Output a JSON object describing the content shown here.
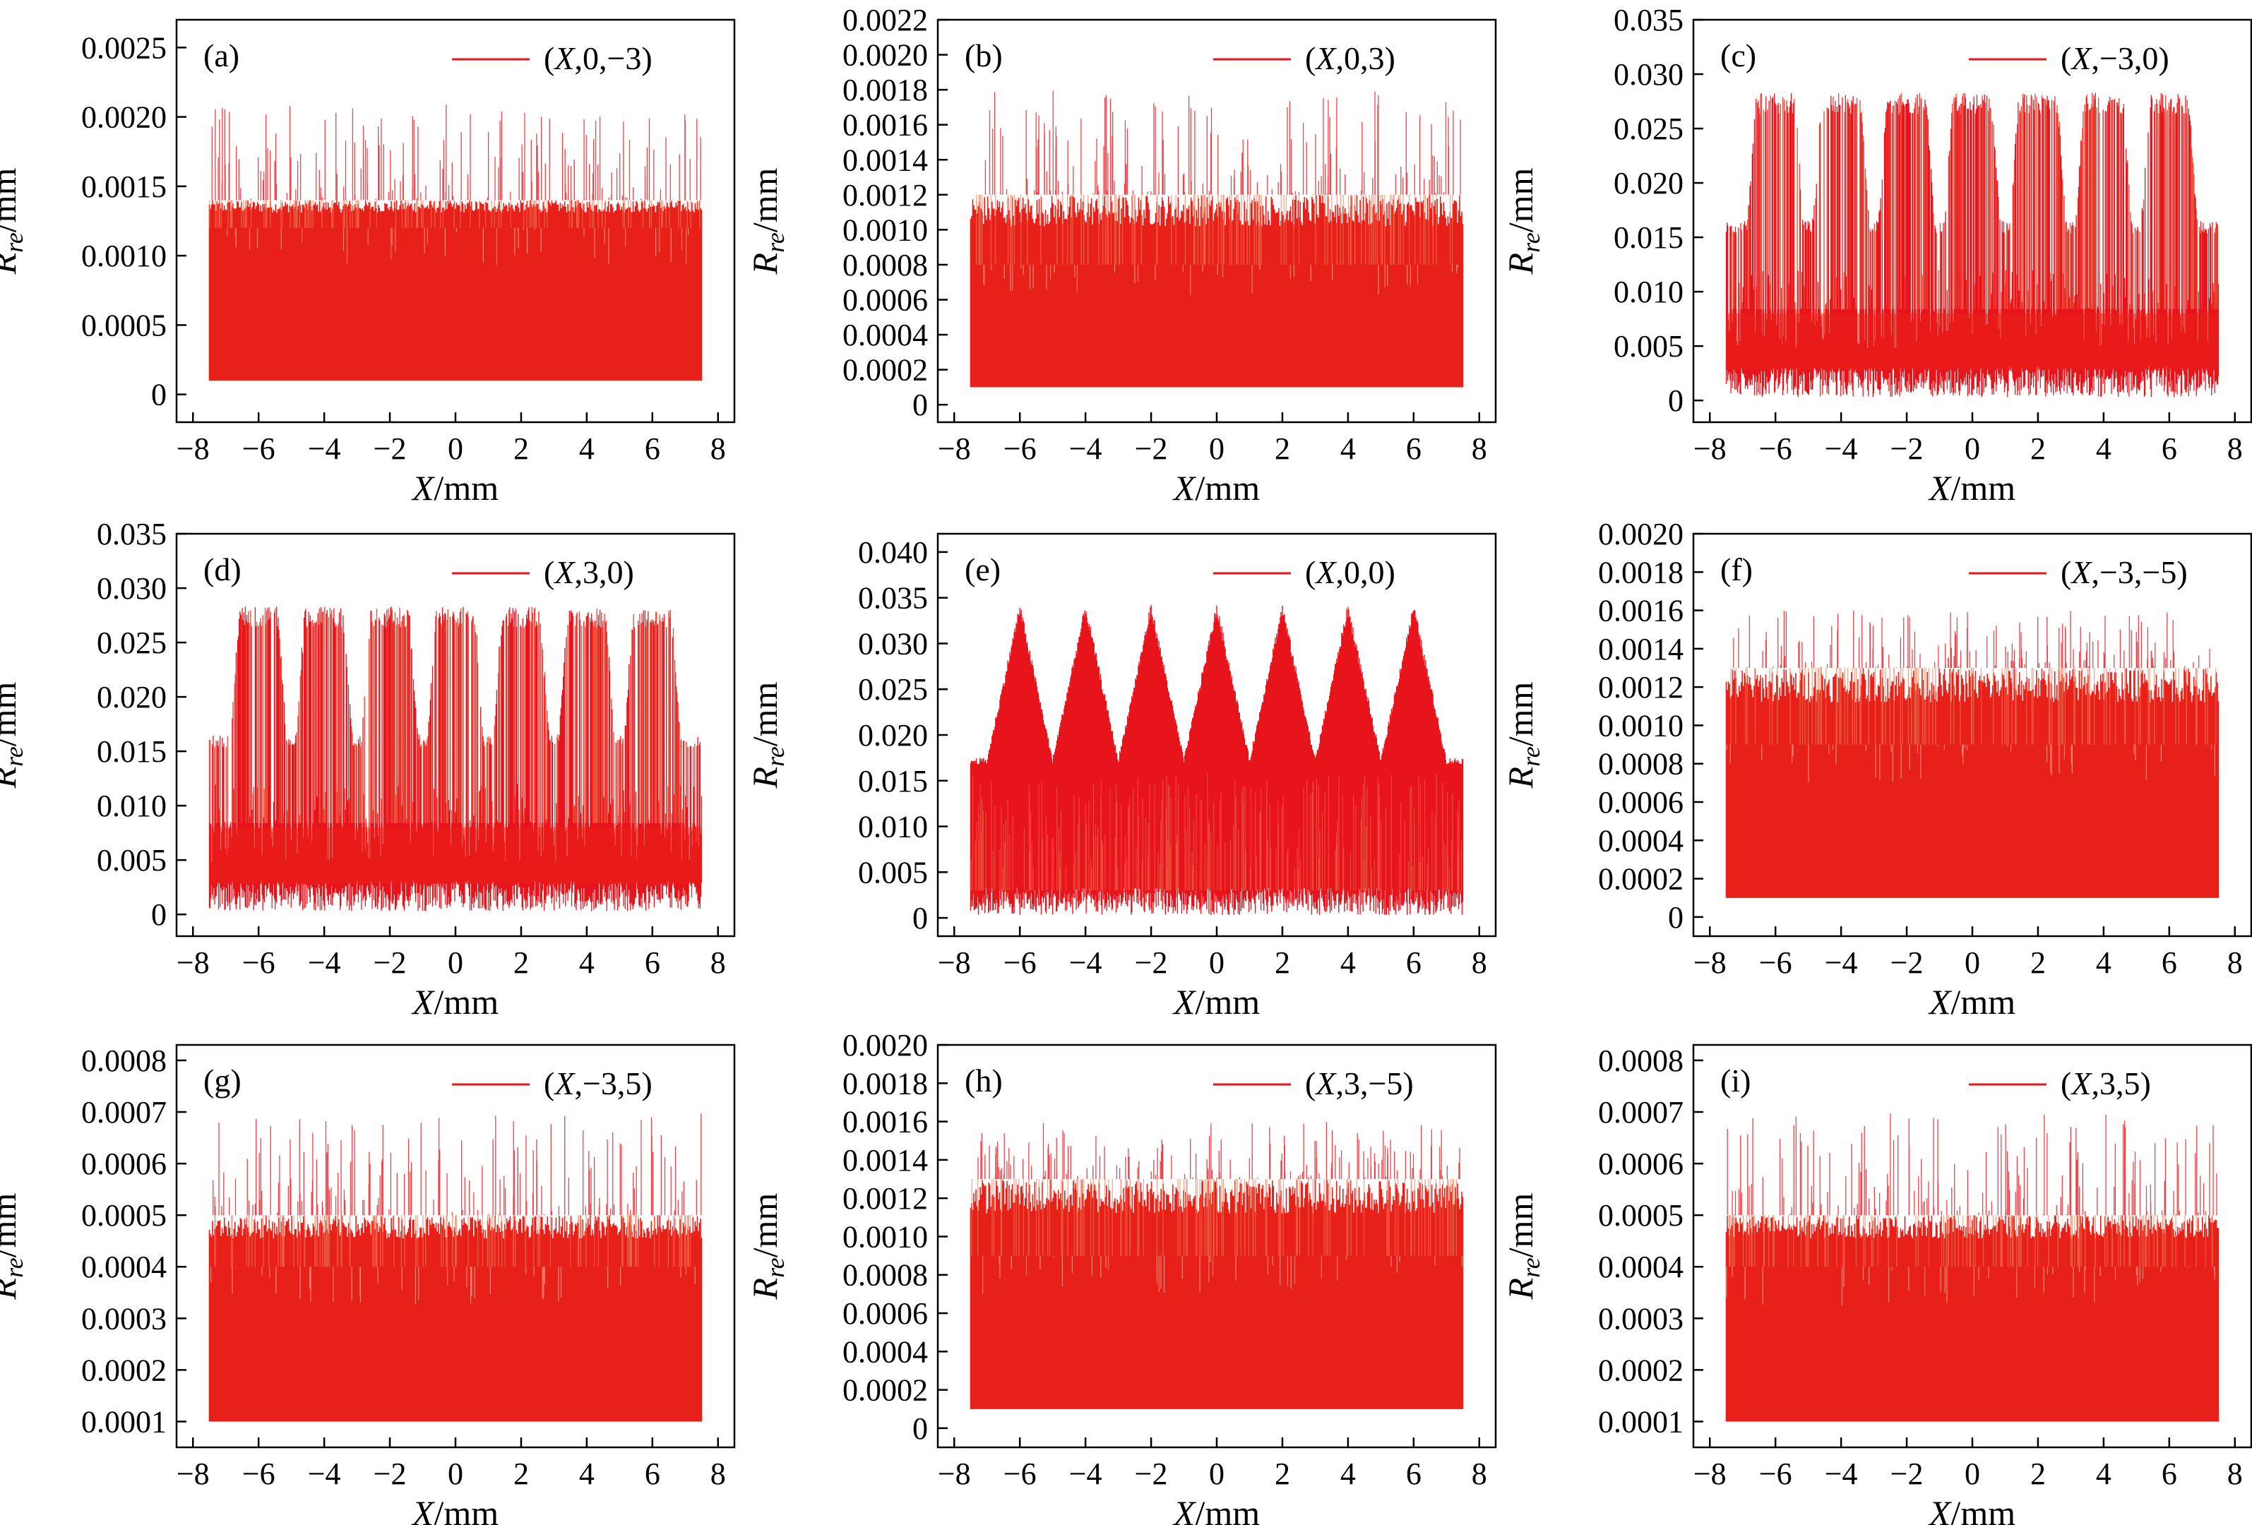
{
  "figure": {
    "ylabel_main": "R",
    "ylabel_sub": "re",
    "ylabel_unit": "/mm",
    "xlabel_main": "X",
    "xlabel_unit": "/mm",
    "line_color": "#e8141c",
    "fill_color": "#e8201a",
    "upper_color": "#f07a55"
  },
  "chart_data": [
    {
      "panel": "(a)",
      "type": "line",
      "legend": "(X,0,−3)",
      "legend_placement": "top-right",
      "xlim": [
        -8.5,
        8.5
      ],
      "xticks": [
        "−8",
        "−6",
        "−4",
        "−2",
        "0",
        "2",
        "4",
        "6",
        "8"
      ],
      "ylim": [
        -0.0002,
        0.0027
      ],
      "yticks": [
        {
          "v": 0,
          "t": "0"
        },
        {
          "v": 0.0005,
          "t": "0.0005"
        },
        {
          "v": 0.001,
          "t": "0.0010"
        },
        {
          "v": 0.0015,
          "t": "0.0015"
        },
        {
          "v": 0.002,
          "t": "0.0020"
        },
        {
          "v": 0.0025,
          "t": "0.0025"
        }
      ],
      "x_range": [
        -7.5,
        7.5
      ],
      "mode": "flat",
      "y_min": 0.0001,
      "y_core": 0.0012,
      "y_band": 0.0014,
      "y_peak": 0.0021
    },
    {
      "panel": "(b)",
      "type": "line",
      "legend": "(X,0,3)",
      "legend_placement": "top-right",
      "xlim": [
        -8.5,
        8.5
      ],
      "xticks": [
        "−8",
        "−6",
        "−4",
        "−2",
        "0",
        "2",
        "4",
        "6",
        "8"
      ],
      "ylim": [
        -0.0001,
        0.0022
      ],
      "yticks": [
        {
          "v": 0,
          "t": "0"
        },
        {
          "v": 0.0002,
          "t": "0.0002"
        },
        {
          "v": 0.0004,
          "t": "0.0004"
        },
        {
          "v": 0.0006,
          "t": "0.0006"
        },
        {
          "v": 0.0008,
          "t": "0.0008"
        },
        {
          "v": 0.001,
          "t": "0.0010"
        },
        {
          "v": 0.0012,
          "t": "0.0012"
        },
        {
          "v": 0.0014,
          "t": "0.0014"
        },
        {
          "v": 0.0016,
          "t": "0.0016"
        },
        {
          "v": 0.0018,
          "t": "0.0018"
        },
        {
          "v": 0.002,
          "t": "0.0020"
        },
        {
          "v": 0.0022,
          "t": "0.0022"
        }
      ],
      "x_range": [
        -7.5,
        7.5
      ],
      "mode": "flat",
      "y_min": 0.0001,
      "y_core": 0.0008,
      "y_band": 0.0012,
      "y_peak": 0.0018
    },
    {
      "panel": "(c)",
      "type": "line",
      "legend": "(X,−3,0)",
      "legend_placement": "top-right",
      "xlim": [
        -8.5,
        8.5
      ],
      "xticks": [
        "−8",
        "−6",
        "−4",
        "−2",
        "0",
        "2",
        "4",
        "6",
        "8"
      ],
      "ylim": [
        -0.002,
        0.035
      ],
      "yticks": [
        {
          "v": 0,
          "t": "0"
        },
        {
          "v": 0.005,
          "t": "0.005"
        },
        {
          "v": 0.01,
          "t": "0.010"
        },
        {
          "v": 0.015,
          "t": "0.015"
        },
        {
          "v": 0.02,
          "t": "0.020"
        },
        {
          "v": 0.025,
          "t": "0.025"
        },
        {
          "v": 0.03,
          "t": "0.030"
        },
        {
          "v": 0.035,
          "t": "0.035"
        }
      ],
      "x_range": [
        -7.5,
        7.5
      ],
      "mode": "bumps",
      "y_min": 0.0003,
      "y_core": 0.008,
      "y_band": 0.0165,
      "y_peak": 0.0283,
      "bump_centers": [
        -6.0,
        -4.0,
        -2.0,
        0.0,
        2.0,
        4.0,
        6.0
      ],
      "bump_half_width": 0.55
    },
    {
      "panel": "(d)",
      "type": "line",
      "legend": "(X,3,0)",
      "legend_placement": "top-right",
      "xlim": [
        -8.5,
        8.5
      ],
      "xticks": [
        "−8",
        "−6",
        "−4",
        "−2",
        "0",
        "2",
        "4",
        "6",
        "8"
      ],
      "ylim": [
        -0.002,
        0.035
      ],
      "yticks": [
        {
          "v": 0,
          "t": "0"
        },
        {
          "v": 0.005,
          "t": "0.005"
        },
        {
          "v": 0.01,
          "t": "0.010"
        },
        {
          "v": 0.015,
          "t": "0.015"
        },
        {
          "v": 0.02,
          "t": "0.020"
        },
        {
          "v": 0.025,
          "t": "0.025"
        },
        {
          "v": 0.03,
          "t": "0.030"
        },
        {
          "v": 0.035,
          "t": "0.035"
        }
      ],
      "x_range": [
        -7.5,
        7.5
      ],
      "mode": "bumps",
      "y_min": 0.0003,
      "y_core": 0.008,
      "y_band": 0.0165,
      "y_peak": 0.0283,
      "bump_centers": [
        -6.0,
        -4.0,
        -2.0,
        0.0,
        2.0,
        4.0,
        6.0
      ],
      "bump_half_width": 0.55
    },
    {
      "panel": "(e)",
      "type": "line",
      "legend": "(X,0,0)",
      "legend_placement": "top-right",
      "xlim": [
        -8.5,
        8.5
      ],
      "xticks": [
        "−8",
        "−6",
        "−4",
        "−2",
        "0",
        "2",
        "4",
        "6",
        "8"
      ],
      "ylim": [
        -0.002,
        0.042
      ],
      "yticks": [
        {
          "v": 0,
          "t": "0"
        },
        {
          "v": 0.005,
          "t": "0.005"
        },
        {
          "v": 0.01,
          "t": "0.010"
        },
        {
          "v": 0.015,
          "t": "0.015"
        },
        {
          "v": 0.02,
          "t": "0.020"
        },
        {
          "v": 0.025,
          "t": "0.025"
        },
        {
          "v": 0.03,
          "t": "0.030"
        },
        {
          "v": 0.035,
          "t": "0.035"
        },
        {
          "v": 0.04,
          "t": "0.040"
        }
      ],
      "x_range": [
        -7.5,
        7.5
      ],
      "mode": "zigzag",
      "y_min": 0.0003,
      "y_core": 0.003,
      "y_valley": 0.0175,
      "y_peak": 0.0345,
      "peak_positions": [
        -6.0,
        -4.0,
        -2.0,
        0.0,
        2.0,
        4.0,
        6.0
      ]
    },
    {
      "panel": "(f)",
      "type": "line",
      "legend": "(X,−3,−5)",
      "legend_placement": "top-right",
      "xlim": [
        -8.5,
        8.5
      ],
      "xticks": [
        "−8",
        "−6",
        "−4",
        "−2",
        "0",
        "2",
        "4",
        "6",
        "8"
      ],
      "ylim": [
        -0.0001,
        0.002
      ],
      "yticks": [
        {
          "v": 0,
          "t": "0"
        },
        {
          "v": 0.0002,
          "t": "0.0002"
        },
        {
          "v": 0.0004,
          "t": "0.0004"
        },
        {
          "v": 0.0006,
          "t": "0.0006"
        },
        {
          "v": 0.0008,
          "t": "0.0008"
        },
        {
          "v": 0.001,
          "t": "0.0010"
        },
        {
          "v": 0.0012,
          "t": "0.0012"
        },
        {
          "v": 0.0014,
          "t": "0.0014"
        },
        {
          "v": 0.0016,
          "t": "0.0016"
        },
        {
          "v": 0.0018,
          "t": "0.0018"
        },
        {
          "v": 0.002,
          "t": "0.0020"
        }
      ],
      "x_range": [
        -7.5,
        7.5
      ],
      "mode": "flat",
      "y_min": 0.0001,
      "y_core": 0.0009,
      "y_band": 0.0013,
      "y_peak": 0.0016
    },
    {
      "panel": "(g)",
      "type": "line",
      "legend": "(X,−3,5)",
      "legend_placement": "top-right",
      "xlim": [
        -8.5,
        8.5
      ],
      "xticks": [
        "−8",
        "−6",
        "−4",
        "−2",
        "0",
        "2",
        "4",
        "6",
        "8"
      ],
      "ylim": [
        5e-05,
        0.00083
      ],
      "yticks": [
        {
          "v": 0.0001,
          "t": "0.0001"
        },
        {
          "v": 0.0002,
          "t": "0.0002"
        },
        {
          "v": 0.0003,
          "t": "0.0003"
        },
        {
          "v": 0.0004,
          "t": "0.0004"
        },
        {
          "v": 0.0005,
          "t": "0.0005"
        },
        {
          "v": 0.0006,
          "t": "0.0006"
        },
        {
          "v": 0.0007,
          "t": "0.0007"
        },
        {
          "v": 0.0008,
          "t": "0.0008"
        }
      ],
      "x_range": [
        -7.5,
        7.5
      ],
      "mode": "flat",
      "y_min": 0.0001,
      "y_core": 0.0004,
      "y_band": 0.0005,
      "y_peak": 0.0007
    },
    {
      "panel": "(h)",
      "type": "line",
      "legend": "(X,3,−5)",
      "legend_placement": "top-right",
      "xlim": [
        -8.5,
        8.5
      ],
      "xticks": [
        "−8",
        "−6",
        "−4",
        "−2",
        "0",
        "2",
        "4",
        "6",
        "8"
      ],
      "ylim": [
        -0.0001,
        0.002
      ],
      "yticks": [
        {
          "v": 0,
          "t": "0"
        },
        {
          "v": 0.0002,
          "t": "0.0002"
        },
        {
          "v": 0.0004,
          "t": "0.0004"
        },
        {
          "v": 0.0006,
          "t": "0.0006"
        },
        {
          "v": 0.0008,
          "t": "0.0008"
        },
        {
          "v": 0.001,
          "t": "0.0010"
        },
        {
          "v": 0.0012,
          "t": "0.0012"
        },
        {
          "v": 0.0014,
          "t": "0.0014"
        },
        {
          "v": 0.0016,
          "t": "0.0016"
        },
        {
          "v": 0.0018,
          "t": "0.0018"
        },
        {
          "v": 0.002,
          "t": "0.0020"
        }
      ],
      "x_range": [
        -7.5,
        7.5
      ],
      "mode": "flat",
      "y_min": 0.0001,
      "y_core": 0.0009,
      "y_band": 0.0013,
      "y_peak": 0.0016
    },
    {
      "panel": "(i)",
      "type": "line",
      "legend": "(X,3,5)",
      "legend_placement": "top-right",
      "xlim": [
        -8.5,
        8.5
      ],
      "xticks": [
        "−8",
        "−6",
        "−4",
        "−2",
        "0",
        "2",
        "4",
        "6",
        "8"
      ],
      "ylim": [
        5e-05,
        0.00083
      ],
      "yticks": [
        {
          "v": 0.0001,
          "t": "0.0001"
        },
        {
          "v": 0.0002,
          "t": "0.0002"
        },
        {
          "v": 0.0003,
          "t": "0.0003"
        },
        {
          "v": 0.0004,
          "t": "0.0004"
        },
        {
          "v": 0.0005,
          "t": "0.0005"
        },
        {
          "v": 0.0006,
          "t": "0.0006"
        },
        {
          "v": 0.0007,
          "t": "0.0007"
        },
        {
          "v": 0.0008,
          "t": "0.0008"
        }
      ],
      "x_range": [
        -7.5,
        7.5
      ],
      "mode": "flat",
      "y_min": 0.0001,
      "y_core": 0.0004,
      "y_band": 0.0005,
      "y_peak": 0.0007
    }
  ]
}
